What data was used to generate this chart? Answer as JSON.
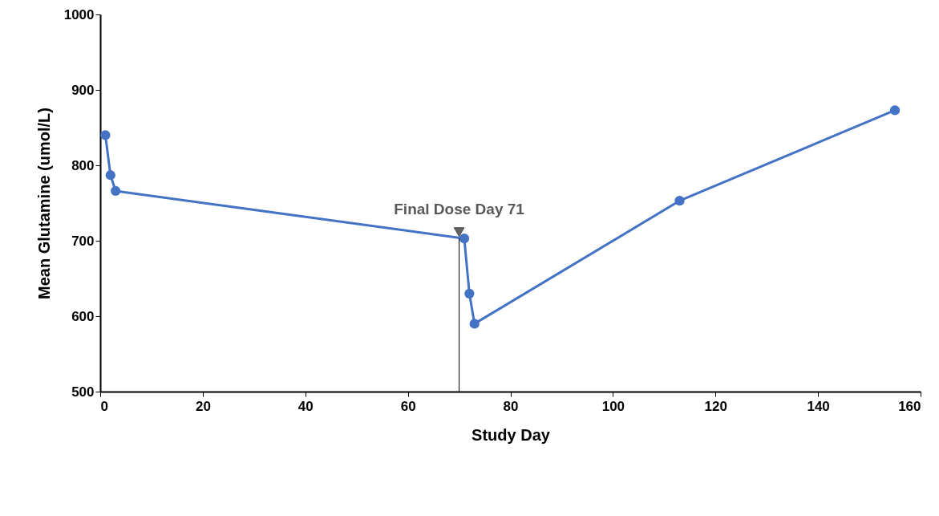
{
  "chart_data": {
    "type": "line",
    "xlabel": "Study Day",
    "ylabel": "Mean Glutamine (umol/L)",
    "x": [
      1,
      2,
      3,
      71,
      72,
      73,
      113,
      155
    ],
    "series": [
      {
        "color": "#4472c4",
        "values": [
          840,
          787,
          766,
          703,
          630,
          590,
          753,
          873
        ]
      }
    ],
    "xlim": [
      0,
      160
    ],
    "xticks": [
      0,
      20,
      40,
      60,
      80,
      100,
      120,
      140,
      160
    ],
    "ylim": [
      500,
      1000
    ],
    "yticks": [
      500,
      600,
      700,
      800,
      900,
      1000
    ],
    "annotations": [
      {
        "text": "Final Dose Day 71",
        "x": 70,
        "y": 703
      }
    ],
    "marker": "circle",
    "line_style": "solid",
    "grid": false
  }
}
